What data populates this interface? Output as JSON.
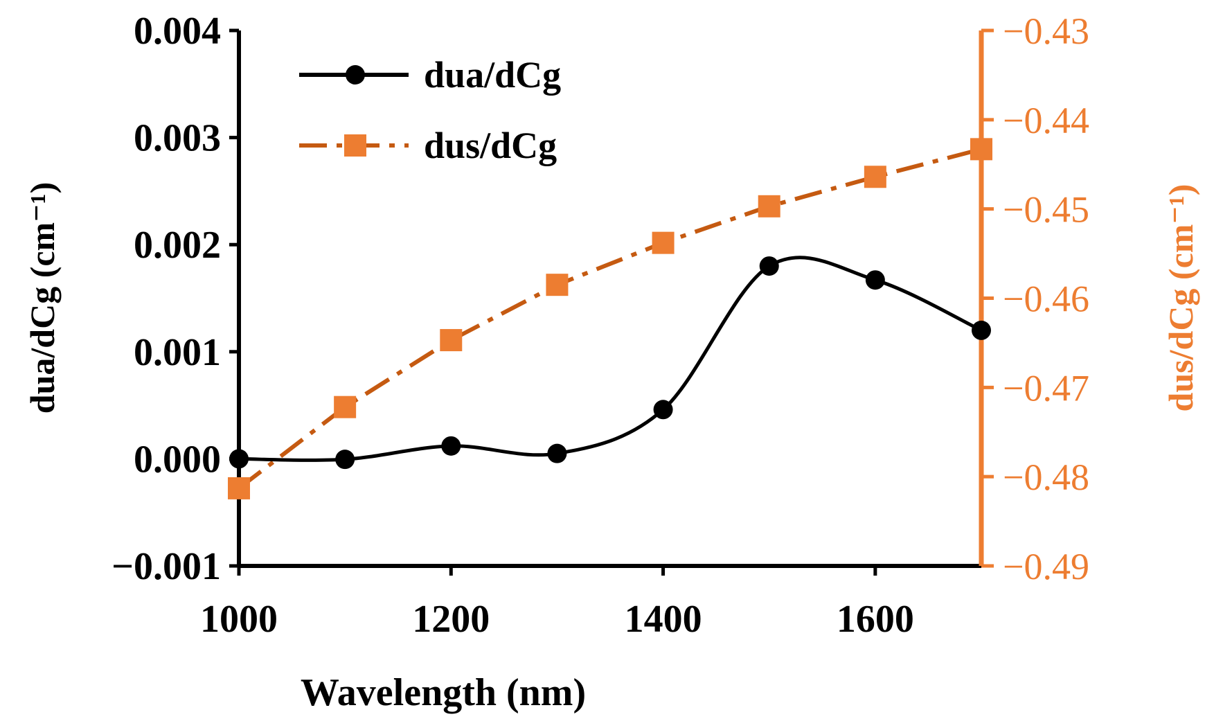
{
  "chart_data": {
    "type": "line",
    "title": "",
    "x": [
      1000,
      1100,
      1200,
      1300,
      1400,
      1500,
      1600,
      1700
    ],
    "xlabel": "Wavelength (nm)",
    "xlim": [
      1000,
      1700
    ],
    "xticks": [
      "1000",
      "1200",
      "1400",
      "1600"
    ],
    "xtick_values": [
      1000,
      1200,
      1400,
      1600
    ],
    "ylabel": "dua/dCg (cm⁻¹)",
    "ylim": [
      -0.001,
      0.004
    ],
    "yticks": [
      "−0.001",
      "0.000",
      "0.001",
      "0.002",
      "0.003",
      "0.004"
    ],
    "ytick_values": [
      -0.001,
      0.0,
      0.001,
      0.002,
      0.003,
      0.004
    ],
    "y2label": "dus/dCg (cm⁻¹)",
    "y2lim": [
      -0.49,
      -0.43
    ],
    "y2ticks": [
      "−0.49",
      "−0.48",
      "−0.47",
      "−0.46",
      "−0.45",
      "−0.44",
      "−0.43"
    ],
    "y2tick_values": [
      -0.49,
      -0.48,
      -0.47,
      -0.46,
      -0.45,
      -0.44,
      -0.43
    ],
    "grid": false,
    "legend_position": "top-left",
    "series": [
      {
        "name": "dua/dCg",
        "axis": "left",
        "style": "solid smooth line with circle markers",
        "color": "#000000",
        "values": [
          0.0,
          -5e-06,
          0.00012,
          5e-05,
          0.00046,
          0.0018,
          0.00167,
          0.0012
        ]
      },
      {
        "name": "dus/dCg",
        "axis": "right",
        "style": "dash-dot line with square markers",
        "color": "#ED7D31",
        "line_color": "#C55A11",
        "values": [
          -0.4813,
          -0.4722,
          -0.4647,
          -0.4585,
          -0.4538,
          -0.4497,
          -0.4464,
          -0.4433
        ]
      }
    ]
  },
  "colors": {
    "axis_left": "#000000",
    "axis_right": "#ED7D31",
    "background": "#FFFFFF"
  }
}
